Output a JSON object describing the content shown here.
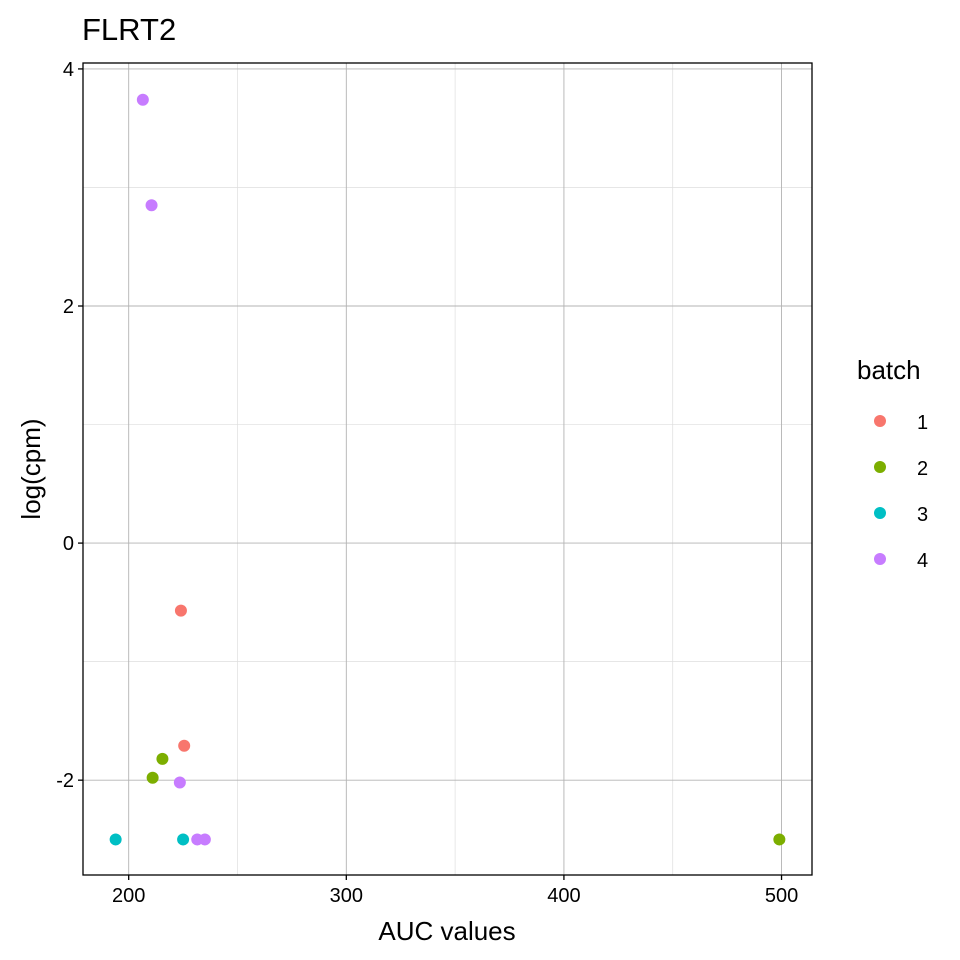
{
  "chart_data": {
    "type": "scatter",
    "title": "FLRT2",
    "xlabel": "AUC values",
    "ylabel": "log(cpm)",
    "xlim": [
      179,
      514
    ],
    "ylim": [
      -2.8,
      4.05
    ],
    "x_ticks": [
      200,
      300,
      400,
      500
    ],
    "x_tick_labels": [
      "200",
      "300",
      "400",
      "500"
    ],
    "x_minor_ticks": [
      250,
      350,
      450
    ],
    "y_ticks": [
      -2,
      0,
      2,
      4
    ],
    "y_tick_labels": [
      "-2",
      "0",
      "2",
      "4"
    ],
    "y_minor_ticks": [
      -1,
      1,
      3
    ],
    "grid": true,
    "legend": {
      "title": "batch",
      "position": "right",
      "entries": [
        "1",
        "2",
        "3",
        "4"
      ]
    },
    "series": [
      {
        "name": "1",
        "color": "#F8766D",
        "points": [
          {
            "x": 224,
            "y": -0.57
          },
          {
            "x": 225.5,
            "y": -1.71
          }
        ]
      },
      {
        "name": "2",
        "color": "#7CAE00",
        "points": [
          {
            "x": 215.5,
            "y": -1.82
          },
          {
            "x": 211,
            "y": -1.98
          },
          {
            "x": 499,
            "y": -2.5
          }
        ]
      },
      {
        "name": "3",
        "color": "#00BFC4",
        "points": [
          {
            "x": 194,
            "y": -2.5
          },
          {
            "x": 225,
            "y": -2.5
          }
        ]
      },
      {
        "name": "4",
        "color": "#C77CFF",
        "points": [
          {
            "x": 206.5,
            "y": 3.74
          },
          {
            "x": 210.5,
            "y": 2.85
          },
          {
            "x": 223.5,
            "y": -2.02
          },
          {
            "x": 231.5,
            "y": -2.5
          },
          {
            "x": 235,
            "y": -2.5
          }
        ]
      }
    ]
  }
}
